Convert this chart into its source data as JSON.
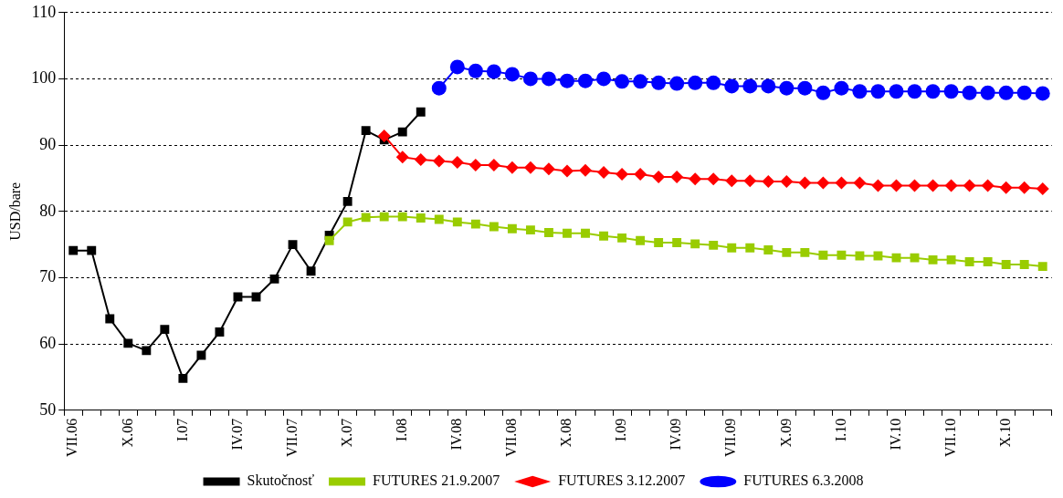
{
  "chart_data": {
    "type": "line",
    "ylabel": "USD/bare",
    "categories": [
      "VII.06",
      null,
      null,
      "X.06",
      null,
      null,
      "I.07",
      null,
      null,
      "IV.07",
      null,
      null,
      "VII.07",
      null,
      null,
      "X.07",
      null,
      null,
      "I.08",
      null,
      null,
      "IV.08",
      null,
      null,
      "VII.08",
      null,
      null,
      "X.08",
      null,
      null,
      "I.09",
      null,
      null,
      "IV.09",
      null,
      null,
      "VII.09",
      null,
      null,
      "X.09",
      null,
      null,
      "I.10",
      null,
      null,
      "IV.10",
      null,
      null,
      "VII.10",
      null,
      null,
      "X.10",
      null,
      null
    ],
    "series": [
      {
        "name": "Skutočnosť",
        "color": "#000000",
        "marker": "square",
        "values": [
          74.1,
          74.1,
          63.8,
          60.1,
          59.0,
          62.2,
          54.8,
          58.3,
          61.8,
          67.1,
          67.1,
          69.8,
          75.0,
          71.0,
          76.4,
          81.5,
          92.2,
          90.8,
          92.0,
          95.0,
          null,
          null,
          null,
          null,
          null,
          null,
          null,
          null,
          null,
          null,
          null,
          null,
          null,
          null,
          null,
          null,
          null,
          null,
          null,
          null,
          null,
          null,
          null,
          null,
          null,
          null,
          null,
          null,
          null,
          null,
          null,
          null,
          null,
          null
        ]
      },
      {
        "name": "FUTURES 21.9.2007",
        "color": "#99cc00",
        "marker": "square",
        "values": [
          null,
          null,
          null,
          null,
          null,
          null,
          null,
          null,
          null,
          null,
          null,
          null,
          null,
          null,
          75.6,
          78.4,
          79.1,
          79.2,
          79.2,
          79.0,
          78.8,
          78.4,
          78.1,
          77.7,
          77.4,
          77.2,
          76.8,
          76.7,
          76.7,
          76.3,
          76.0,
          75.6,
          75.3,
          75.3,
          75.1,
          74.9,
          74.5,
          74.5,
          74.2,
          73.8,
          73.8,
          73.4,
          73.4,
          73.3,
          73.3,
          73.0,
          73.0,
          72.7,
          72.7,
          72.4,
          72.4,
          72.0,
          72.0,
          71.7
        ]
      },
      {
        "name": "FUTURES 3.12.2007",
        "color": "#ff0000",
        "marker": "diamond",
        "values": [
          null,
          null,
          null,
          null,
          null,
          null,
          null,
          null,
          null,
          null,
          null,
          null,
          null,
          null,
          null,
          null,
          null,
          91.4,
          88.2,
          87.8,
          87.6,
          87.4,
          87.0,
          87.0,
          86.6,
          86.6,
          86.4,
          86.1,
          86.2,
          85.9,
          85.6,
          85.6,
          85.2,
          85.2,
          84.9,
          84.9,
          84.6,
          84.6,
          84.5,
          84.5,
          84.3,
          84.3,
          84.3,
          84.3,
          83.9,
          83.9,
          83.9,
          83.9,
          83.9,
          83.9,
          83.9,
          83.6,
          83.6,
          83.4
        ]
      },
      {
        "name": "FUTURES 6.3.2008",
        "color": "#0000ff",
        "marker": "circle",
        "values": [
          null,
          null,
          null,
          null,
          null,
          null,
          null,
          null,
          null,
          null,
          null,
          null,
          null,
          null,
          null,
          null,
          null,
          null,
          null,
          null,
          98.6,
          101.8,
          101.2,
          101.1,
          100.7,
          100.0,
          100.0,
          99.7,
          99.7,
          100.0,
          99.6,
          99.6,
          99.4,
          99.3,
          99.4,
          99.4,
          98.9,
          98.9,
          98.9,
          98.6,
          98.6,
          97.9,
          98.6,
          98.1,
          98.1,
          98.1,
          98.1,
          98.1,
          98.1,
          97.9,
          97.9,
          97.9,
          97.9,
          97.8
        ]
      }
    ],
    "ylim": [
      50,
      110
    ],
    "yticks": [
      50,
      60,
      70,
      80,
      90,
      100,
      110
    ],
    "grid": "y",
    "legend": "bottom",
    "line_style": "solid"
  }
}
